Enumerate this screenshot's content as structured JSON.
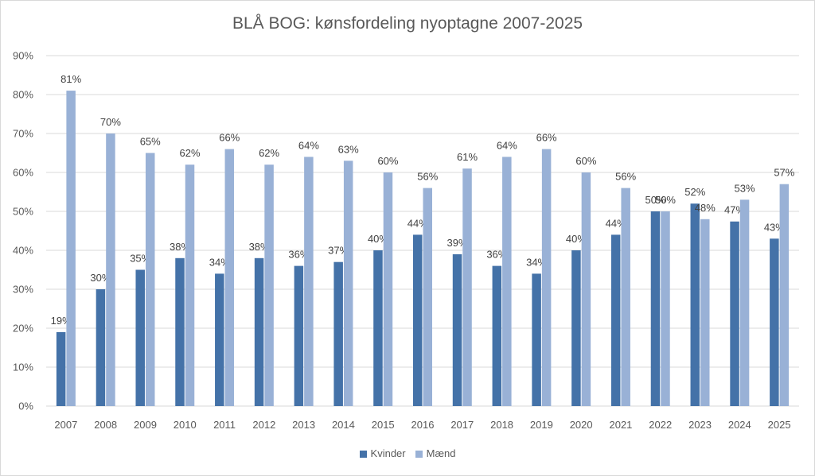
{
  "chart_data": {
    "type": "bar",
    "title": "BLÅ BOG: kønsfordeling nyoptagne 2007-2025",
    "xlabel": "",
    "ylabel": "",
    "ylim": [
      0,
      90
    ],
    "y_tick_step": 10,
    "y_tick_suffix": "%",
    "grid": true,
    "legend_position": "bottom",
    "categories": [
      "2007",
      "2008",
      "2009",
      "2010",
      "2011",
      "2012",
      "2013",
      "2014",
      "2015",
      "2016",
      "2017",
      "2018",
      "2019",
      "2020",
      "2021",
      "2022",
      "2023",
      "2024",
      "2025"
    ],
    "series": [
      {
        "name": "Kvinder",
        "color": "#4472a8",
        "values": [
          19,
          30,
          35,
          38,
          34,
          38,
          36,
          37,
          40,
          44,
          39,
          36,
          34,
          40,
          44,
          50,
          52,
          47.4,
          43
        ],
        "labels": [
          "19%",
          "30%",
          "35%",
          "38%",
          "34%",
          "38%",
          "36%",
          "37%",
          "40%",
          "44%",
          "39%",
          "36%",
          "34%",
          "40%",
          "44%",
          "50%",
          "52%",
          "47%",
          "43%"
        ]
      },
      {
        "name": "Mænd",
        "color": "#99b1d6",
        "values": [
          81,
          70,
          65,
          62,
          66,
          62,
          64,
          63,
          60,
          56,
          61,
          64,
          66,
          60,
          56,
          50,
          48,
          53,
          57
        ],
        "labels": [
          "81%",
          "70%",
          "65%",
          "62%",
          "66%",
          "62%",
          "64%",
          "63%",
          "60%",
          "56%",
          "61%",
          "64%",
          "66%",
          "60%",
          "56%",
          "50%",
          "48%",
          "53%",
          "57%"
        ]
      }
    ]
  }
}
